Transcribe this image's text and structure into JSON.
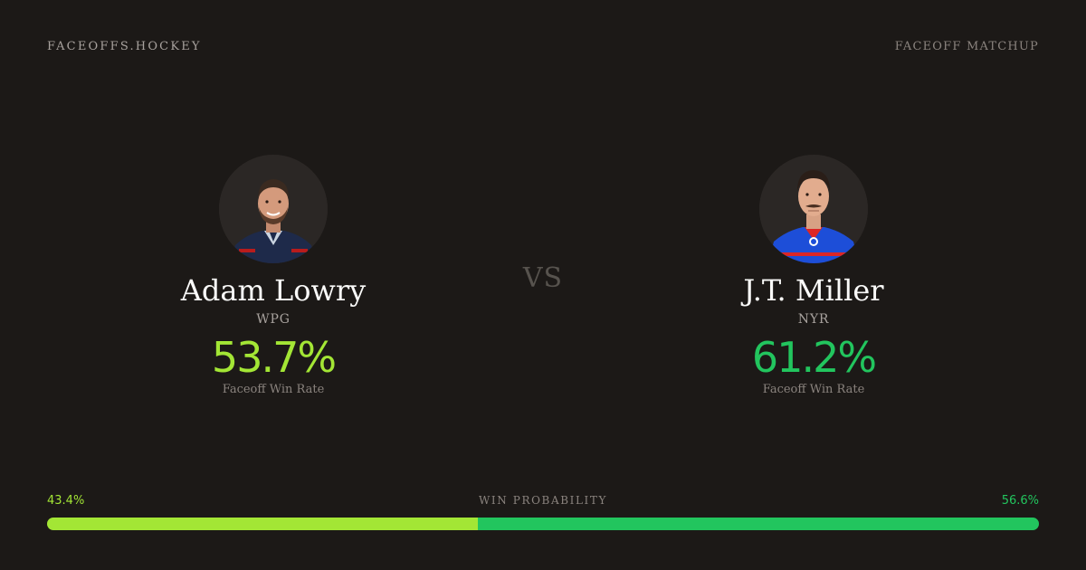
{
  "brand": "FACEOFFS.HOCKEY",
  "header_label": "FACEOFF MATCHUP",
  "vs_label": "VS",
  "players": [
    {
      "name": "Adam Lowry",
      "team": "WPG",
      "win_rate": "53.7%",
      "win_rate_label": "Faceoff Win Rate",
      "color": "#a3e635",
      "jersey_color": "#1e2a4a"
    },
    {
      "name": "J.T. Miller",
      "team": "NYR",
      "win_rate": "61.2%",
      "win_rate_label": "Faceoff Win Rate",
      "color": "#22c55e",
      "jersey_color": "#1d4ed8"
    }
  ],
  "probability": {
    "label": "WIN PROBABILITY",
    "left_text": "43.4%",
    "right_text": "56.6%",
    "left_value": 43.4,
    "right_value": 56.6
  }
}
